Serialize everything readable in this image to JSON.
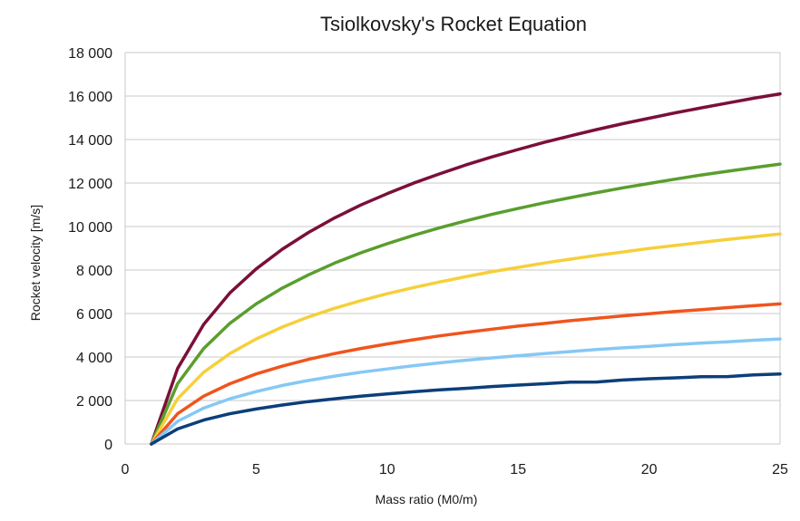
{
  "chart_data": {
    "type": "line",
    "title": "Tsiolkovsky's Rocket Equation",
    "xlabel": "Mass ratio (M0/m)",
    "ylabel": "Rocket velocity [m/s]",
    "xlim": [
      0,
      25
    ],
    "ylim": [
      0,
      18000
    ],
    "xticks": [
      0,
      5,
      10,
      15,
      20,
      25
    ],
    "xtick_labels": [
      "0",
      "5",
      "10",
      "15",
      "20",
      "25"
    ],
    "yticks": [
      0,
      2000,
      4000,
      6000,
      8000,
      10000,
      12000,
      14000,
      16000,
      18000
    ],
    "ytick_labels": [
      "0",
      "2 000",
      "4 000",
      "6 000",
      "8 000",
      "10 000",
      "12 000",
      "14 000",
      "16 000",
      "18 000"
    ],
    "grid": "horizontal",
    "legend": "none",
    "x": [
      1,
      2,
      3,
      4,
      5,
      6,
      7,
      8,
      9,
      10,
      11,
      12,
      13,
      14,
      15,
      16,
      17,
      18,
      19,
      20,
      21,
      22,
      23,
      24,
      25
    ],
    "series": [
      {
        "color": "#7b0f3a",
        "values": [
          0,
          3470,
          5500,
          6950,
          8050,
          8960,
          9730,
          10400,
          10990,
          11510,
          11990,
          12420,
          12830,
          13200,
          13540,
          13870,
          14170,
          14460,
          14730,
          14980,
          15230,
          15460,
          15680,
          15900,
          16100
        ]
      },
      {
        "color": "#5a9e2e",
        "values": [
          0,
          2770,
          4390,
          5550,
          6440,
          7170,
          7780,
          8320,
          8790,
          9210,
          9590,
          9940,
          10260,
          10560,
          10830,
          11090,
          11330,
          11560,
          11780,
          11980,
          12180,
          12370,
          12540,
          12710,
          12870
        ]
      },
      {
        "color": "#f6cf3a",
        "values": [
          0,
          2080,
          3300,
          4160,
          4830,
          5380,
          5840,
          6240,
          6590,
          6910,
          7190,
          7450,
          7690,
          7920,
          8120,
          8320,
          8500,
          8670,
          8830,
          8990,
          9130,
          9270,
          9410,
          9530,
          9660
        ]
      },
      {
        "color": "#f0541e",
        "values": [
          0,
          1390,
          2200,
          2770,
          3220,
          3580,
          3890,
          4160,
          4390,
          4600,
          4790,
          4970,
          5130,
          5280,
          5420,
          5540,
          5670,
          5780,
          5890,
          5990,
          6090,
          6180,
          6270,
          6360,
          6440
        ]
      },
      {
        "color": "#86c8f5",
        "values": [
          0,
          1040,
          1650,
          2080,
          2410,
          2690,
          2920,
          3120,
          3300,
          3450,
          3600,
          3730,
          3850,
          3960,
          4060,
          4160,
          4250,
          4340,
          4420,
          4490,
          4570,
          4640,
          4700,
          4770,
          4830
        ]
      },
      {
        "color": "#0c3e7a",
        "values": [
          0,
          690,
          1100,
          1390,
          1610,
          1790,
          1950,
          2080,
          2200,
          2300,
          2400,
          2490,
          2560,
          2640,
          2710,
          2770,
          2840,
          2850,
          2940,
          3000,
          3040,
          3090,
          3100,
          3180,
          3220
        ]
      }
    ]
  }
}
